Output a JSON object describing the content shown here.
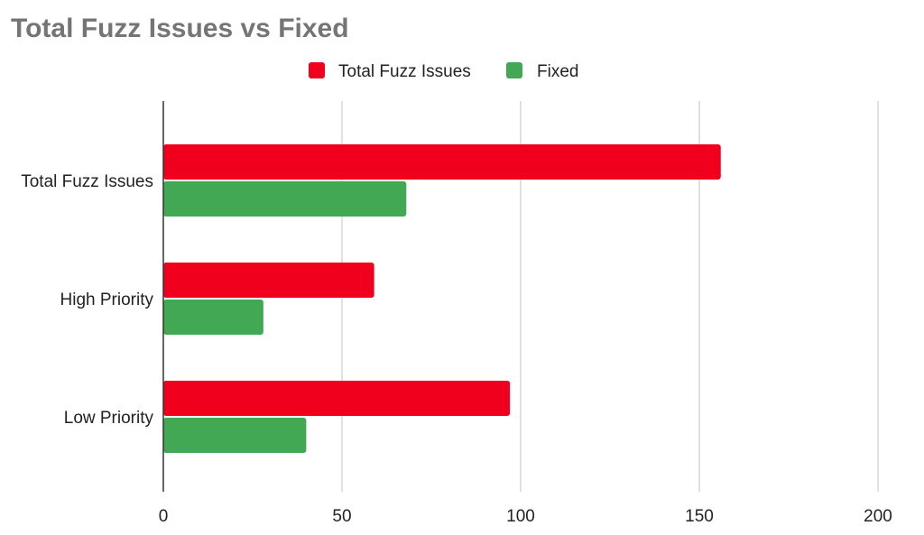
{
  "chart_data": {
    "type": "bar",
    "orientation": "horizontal",
    "title": "Total Fuzz Issues vs Fixed",
    "categories": [
      "Total Fuzz Issues",
      "High Priority",
      "Low Priority"
    ],
    "series": [
      {
        "name": "Total Fuzz Issues",
        "values": [
          156,
          59,
          97
        ],
        "color": "#f0001c"
      },
      {
        "name": "Fixed",
        "values": [
          68,
          28,
          40
        ],
        "color": "#43a853"
      }
    ],
    "xlim": [
      0,
      200
    ],
    "xticks": [
      0,
      50,
      100,
      150,
      200
    ],
    "xtick_labels": [
      "0",
      "50",
      "100",
      "150",
      "200"
    ],
    "grid": "vertical",
    "legend": "top-center",
    "colors": {
      "title": "#757575",
      "grid": "#cccccc",
      "axis": "#333333"
    }
  }
}
